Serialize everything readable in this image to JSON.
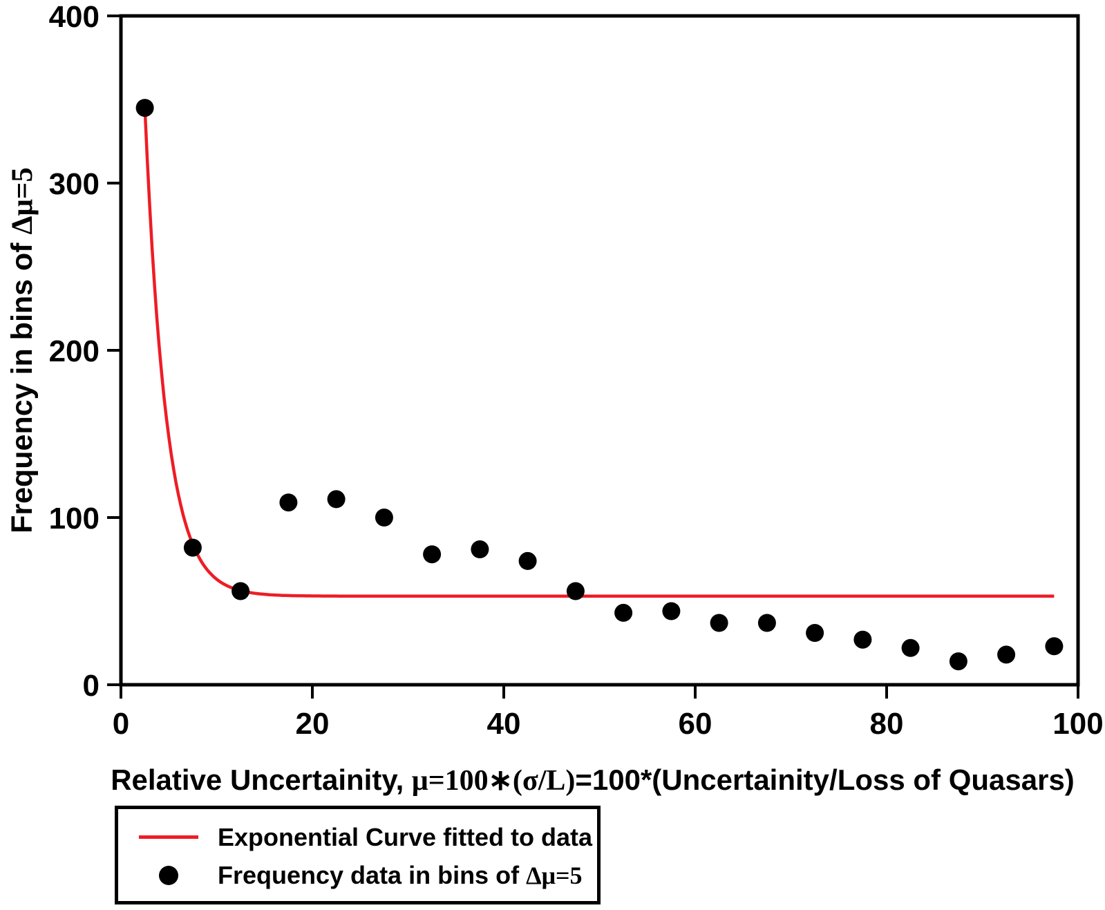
{
  "chart_data": {
    "type": "scatter",
    "title": "",
    "grid": false,
    "legend_position": "below-left",
    "xlabel_full": "Relative Uncertainity, μ=100∗(σ/L)=100*(Uncertainity/Loss of Quasars)",
    "xlabel_parts": [
      "Relative Uncertainity, ",
      "μ=100∗(σ/L)",
      "=100*(Uncertainity/Loss of Quasars)"
    ],
    "ylabel_full": "Frequency in bins of Δμ=5",
    "ylabel_parts": [
      "Frequency in bins of ",
      "Δμ=5"
    ],
    "xlim": [
      0,
      100
    ],
    "ylim": [
      0,
      400
    ],
    "x_ticks": [
      "0",
      "20",
      "40",
      "60",
      "80",
      "100"
    ],
    "y_ticks": [
      "0",
      "100",
      "200",
      "300",
      "400"
    ],
    "axis_color": "#000000",
    "series": [
      {
        "name": "Frequency data in bins of Δμ=5",
        "type": "scatter",
        "color": "#000000",
        "marker": "filled-circle",
        "x": [
          2.5,
          7.5,
          12.5,
          17.5,
          22.5,
          27.5,
          32.5,
          37.5,
          42.5,
          47.5,
          52.5,
          57.5,
          62.5,
          67.5,
          72.5,
          77.5,
          82.5,
          87.5,
          92.5,
          97.5
        ],
        "y": [
          345,
          82,
          56,
          109,
          111,
          100,
          78,
          81,
          74,
          56,
          43,
          44,
          37,
          37,
          31,
          27,
          22,
          14,
          18,
          23
        ]
      },
      {
        "name": "Exponential Curve fitted to data",
        "type": "line",
        "color": "#ee1c25",
        "formula": "y = A*exp(-b*x) + c",
        "fit": {
          "A": 896,
          "b": 0.4484,
          "c": 53,
          "x_start": 2.5,
          "x_end": 97.5
        }
      }
    ],
    "legend": {
      "line_label": "Exponential Curve fitted to data",
      "dot_label_full": "Frequency data in bins of Δμ=5",
      "dot_label_parts": [
        "Frequency data in bins of ",
        "Δμ=5"
      ]
    }
  }
}
